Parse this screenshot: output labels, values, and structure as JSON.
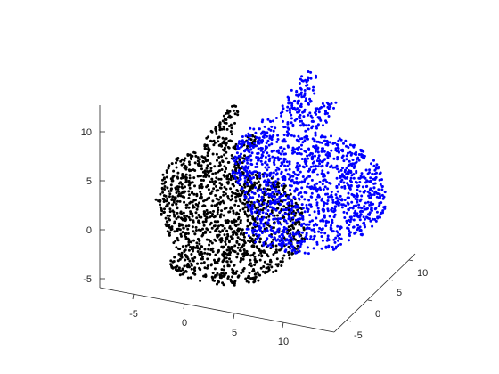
{
  "chart_data": {
    "type": "scatter",
    "title": "",
    "xlabel": "",
    "ylabel": "",
    "zlabel": "",
    "grid": false,
    "legend": null,
    "axes": {
      "x": {
        "range": [
          -9,
          14
        ],
        "ticks": [
          -5,
          0,
          5,
          10
        ],
        "tick_labels": [
          "-5",
          "0",
          "5",
          "10"
        ]
      },
      "y": {
        "range": [
          -7,
          13
        ],
        "ticks": [
          -5,
          0,
          5,
          10
        ],
        "tick_labels": [
          "-5",
          "0",
          "5",
          "10"
        ]
      },
      "z": {
        "range": [
          -6,
          13
        ],
        "ticks": [
          -5,
          0,
          5,
          10
        ],
        "tick_labels": [
          "-5",
          "0",
          "5",
          "10"
        ]
      }
    },
    "series": [
      {
        "color": "#000000",
        "marker": "o",
        "shape": "stanford-bunny-point-cloud",
        "approx_extent": {
          "x": [
            -6.5,
            6
          ],
          "y": [
            -3,
            2
          ],
          "z": [
            -5.5,
            11
          ]
        }
      },
      {
        "color": "#0000ff",
        "marker": "o",
        "shape": "stanford-bunny-point-cloud",
        "approx_extent": {
          "x": [
            0,
            13
          ],
          "y": [
            -2,
            5
          ],
          "z": [
            -3.5,
            14
          ]
        }
      }
    ]
  }
}
